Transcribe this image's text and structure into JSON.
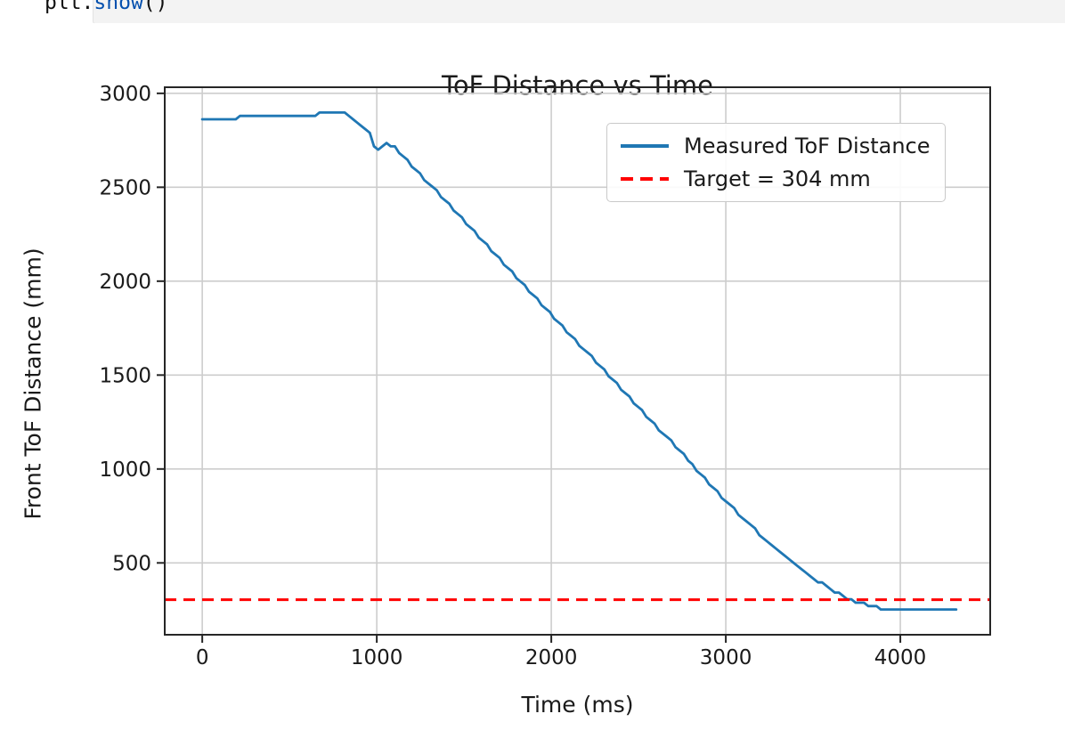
{
  "code_cell": {
    "tokens": [
      {
        "text": "plt",
        "color": "#111111"
      },
      {
        "text": ".",
        "color": "#111111"
      },
      {
        "text": "show",
        "color": "#0550ae"
      },
      {
        "text": "()",
        "color": "#111111"
      }
    ],
    "editor_bg_color": "#f3f3f3"
  },
  "chart_data": {
    "type": "line",
    "title": "ToF Distance vs Time",
    "xlabel": "Time (ms)",
    "ylabel": "Front ToF Distance (mm)",
    "xlim": [
      -215,
      4515
    ],
    "ylim": [
      117.5,
      3032.5
    ],
    "x_ticks": [
      0,
      1000,
      2000,
      3000,
      4000
    ],
    "y_ticks": [
      500,
      1000,
      1500,
      2000,
      2500,
      3000
    ],
    "grid": true,
    "grid_color": "#cdcdcd",
    "spine_color": "#262626",
    "legend_position": "upper right",
    "series": [
      {
        "name": "Measured ToF Distance",
        "kind": "line",
        "color": "#1f77b4",
        "linestyle": "solid",
        "points": [
          [
            0,
            2867
          ],
          [
            200,
            2871
          ],
          [
            400,
            2876
          ],
          [
            600,
            2884
          ],
          [
            700,
            2893
          ],
          [
            730,
            2900
          ],
          [
            755,
            2886
          ],
          [
            785,
            2897
          ],
          [
            815,
            2890
          ],
          [
            845,
            2878
          ],
          [
            875,
            2858
          ],
          [
            905,
            2838
          ],
          [
            935,
            2814
          ],
          [
            960,
            2786
          ],
          [
            985,
            2715
          ],
          [
            1010,
            2700
          ],
          [
            1045,
            2732
          ],
          [
            1085,
            2725
          ],
          [
            1130,
            2688
          ],
          [
            1280,
            2539
          ],
          [
            1430,
            2390
          ],
          [
            1580,
            2241
          ],
          [
            1730,
            2092
          ],
          [
            1880,
            1943
          ],
          [
            2030,
            1794
          ],
          [
            2180,
            1645
          ],
          [
            2330,
            1496
          ],
          [
            2480,
            1347
          ],
          [
            2630,
            1198
          ],
          [
            2705,
            1128
          ],
          [
            2805,
            1025
          ],
          [
            2905,
            924
          ],
          [
            3005,
            826
          ],
          [
            3105,
            732
          ],
          [
            3205,
            643
          ],
          [
            3305,
            560
          ],
          [
            3405,
            484
          ],
          [
            3505,
            416
          ],
          [
            3605,
            356
          ],
          [
            3705,
            308
          ],
          [
            3805,
            275
          ],
          [
            3905,
            257
          ],
          [
            4005,
            248
          ],
          [
            4105,
            244
          ],
          [
            4160,
            252
          ],
          [
            4250,
            249
          ],
          [
            4320,
            247
          ]
        ]
      },
      {
        "name": "Target = 304 mm",
        "kind": "hline",
        "color": "#ff0000",
        "linestyle": "dashed",
        "value": 304
      }
    ]
  }
}
